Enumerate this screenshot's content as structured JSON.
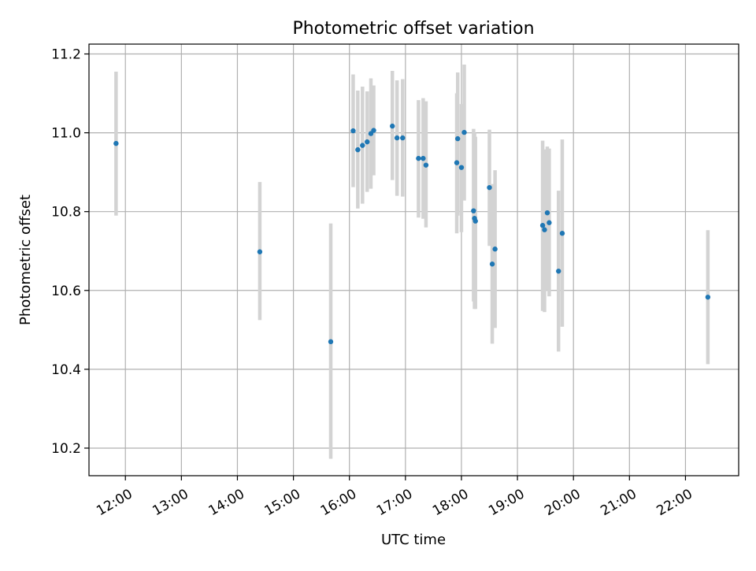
{
  "chart_data": {
    "type": "scatter",
    "title": "Photometric offset variation",
    "xlabel": "UTC time",
    "ylabel": "Photometric offset",
    "xlim": [
      "11:21",
      "22:57"
    ],
    "ylim": [
      10.13,
      11.225
    ],
    "grid": true,
    "xticks": [
      "12:00",
      "13:00",
      "14:00",
      "15:00",
      "16:00",
      "17:00",
      "18:00",
      "19:00",
      "20:00",
      "21:00",
      "22:00"
    ],
    "yticks": [
      "10.2",
      "10.4",
      "10.6",
      "10.8",
      "11.0",
      "11.2"
    ],
    "colors": {
      "point": "#1f77b4",
      "errorbar": "#d3d3d3",
      "grid": "#b0b0b0"
    },
    "points": [
      {
        "x": "11:50",
        "y": 10.973,
        "lo": 10.79,
        "hi": 11.155
      },
      {
        "x": "14:24",
        "y": 10.698,
        "lo": 10.525,
        "hi": 10.875
      },
      {
        "x": "15:40",
        "y": 10.47,
        "lo": 10.173,
        "hi": 10.77
      },
      {
        "x": "16:04",
        "y": 11.005,
        "lo": 10.862,
        "hi": 11.148
      },
      {
        "x": "16:09",
        "y": 10.957,
        "lo": 10.808,
        "hi": 11.107
      },
      {
        "x": "16:14",
        "y": 10.968,
        "lo": 10.82,
        "hi": 11.117
      },
      {
        "x": "16:19",
        "y": 10.977,
        "lo": 10.85,
        "hi": 11.105
      },
      {
        "x": "16:23",
        "y": 10.998,
        "lo": 10.858,
        "hi": 11.138
      },
      {
        "x": "16:26",
        "y": 11.006,
        "lo": 10.892,
        "hi": 11.12
      },
      {
        "x": "16:46",
        "y": 11.017,
        "lo": 10.88,
        "hi": 11.157
      },
      {
        "x": "16:51",
        "y": 10.987,
        "lo": 10.84,
        "hi": 11.133
      },
      {
        "x": "16:57",
        "y": 10.987,
        "lo": 10.838,
        "hi": 11.136
      },
      {
        "x": "17:14",
        "y": 10.935,
        "lo": 10.785,
        "hi": 11.083
      },
      {
        "x": "17:19",
        "y": 10.935,
        "lo": 10.782,
        "hi": 11.088
      },
      {
        "x": "17:22",
        "y": 10.918,
        "lo": 10.76,
        "hi": 11.08
      },
      {
        "x": "17:55",
        "y": 10.924,
        "lo": 10.745,
        "hi": 11.1
      },
      {
        "x": "17:56",
        "y": 10.985,
        "lo": 10.79,
        "hi": 11.153
      },
      {
        "x": "18:00",
        "y": 10.912,
        "lo": 10.748,
        "hi": 11.073
      },
      {
        "x": "18:03",
        "y": 11.001,
        "lo": 10.828,
        "hi": 11.173
      },
      {
        "x": "18:13",
        "y": 10.802,
        "lo": 10.572,
        "hi": 11.01
      },
      {
        "x": "18:14",
        "y": 10.783,
        "lo": 10.553,
        "hi": 11.0
      },
      {
        "x": "18:15",
        "y": 10.776,
        "lo": 10.553,
        "hi": 10.99
      },
      {
        "x": "18:30",
        "y": 10.861,
        "lo": 10.713,
        "hi": 11.008
      },
      {
        "x": "18:33",
        "y": 10.667,
        "lo": 10.465,
        "hi": 10.87
      },
      {
        "x": "18:36",
        "y": 10.705,
        "lo": 10.505,
        "hi": 10.905
      },
      {
        "x": "19:27",
        "y": 10.765,
        "lo": 10.548,
        "hi": 10.98
      },
      {
        "x": "19:29",
        "y": 10.754,
        "lo": 10.545,
        "hi": 10.958
      },
      {
        "x": "19:32",
        "y": 10.797,
        "lo": 10.6,
        "hi": 10.965
      },
      {
        "x": "19:34",
        "y": 10.772,
        "lo": 10.585,
        "hi": 10.96
      },
      {
        "x": "19:44",
        "y": 10.649,
        "lo": 10.445,
        "hi": 10.853
      },
      {
        "x": "19:48",
        "y": 10.745,
        "lo": 10.508,
        "hi": 10.983
      },
      {
        "x": "22:24",
        "y": 10.583,
        "lo": 10.413,
        "hi": 10.753
      }
    ]
  }
}
